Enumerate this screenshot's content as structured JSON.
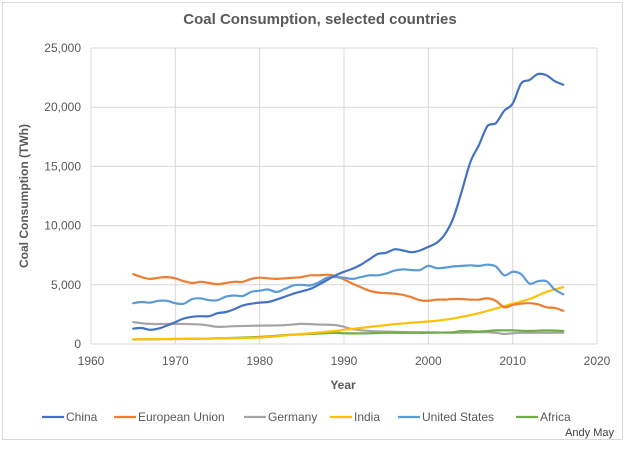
{
  "chart_data": {
    "type": "line",
    "title": "Coal Consumption, selected countries",
    "xlabel": "Year",
    "ylabel": "Coal Consumption (TWh)",
    "xlim": [
      1960,
      2020
    ],
    "ylim": [
      0,
      25000
    ],
    "xticks": [
      1960,
      1970,
      1980,
      1990,
      2000,
      2010,
      2020
    ],
    "yticks": [
      0,
      5000,
      10000,
      15000,
      20000,
      25000
    ],
    "xtick_labels": [
      "1960",
      "1970",
      "1980",
      "1990",
      "2000",
      "2010",
      "2020"
    ],
    "ytick_labels": [
      "0",
      "5,000",
      "10,000",
      "15,000",
      "20,000",
      "25,000"
    ],
    "grid": true,
    "legend_position": "bottom",
    "annotation": "Andy May",
    "series": [
      {
        "name": "China",
        "color": "#4472c4",
        "x": [
          1965,
          1966,
          1967,
          1968,
          1969,
          1970,
          1971,
          1972,
          1973,
          1974,
          1975,
          1976,
          1977,
          1978,
          1979,
          1980,
          1981,
          1982,
          1983,
          1984,
          1985,
          1986,
          1987,
          1988,
          1989,
          1990,
          1991,
          1992,
          1993,
          1994,
          1995,
          1996,
          1997,
          1998,
          1999,
          2000,
          2001,
          2002,
          2003,
          2004,
          2005,
          2006,
          2007,
          2008,
          2009,
          2010,
          2011,
          2012,
          2013,
          2014,
          2015,
          2016
        ],
        "y": [
          1300,
          1350,
          1200,
          1300,
          1550,
          1850,
          2150,
          2300,
          2350,
          2350,
          2600,
          2700,
          2950,
          3250,
          3400,
          3500,
          3550,
          3750,
          4000,
          4250,
          4450,
          4650,
          5000,
          5400,
          5800,
          6100,
          6350,
          6700,
          7150,
          7600,
          7700,
          8000,
          7900,
          7750,
          7900,
          8200,
          8550,
          9300,
          10700,
          13000,
          15400,
          16800,
          18400,
          18650,
          19700,
          20300,
          22000,
          22300,
          22800,
          22700,
          22200,
          21900
        ]
      },
      {
        "name": "European Union",
        "color": "#ed7d31",
        "x": [
          1965,
          1966,
          1967,
          1968,
          1969,
          1970,
          1971,
          1972,
          1973,
          1974,
          1975,
          1976,
          1977,
          1978,
          1979,
          1980,
          1981,
          1982,
          1983,
          1984,
          1985,
          1986,
          1987,
          1988,
          1989,
          1990,
          1991,
          1992,
          1993,
          1994,
          1995,
          1996,
          1997,
          1998,
          1999,
          2000,
          2001,
          2002,
          2003,
          2004,
          2005,
          2006,
          2007,
          2008,
          2009,
          2010,
          2011,
          2012,
          2013,
          2014,
          2015,
          2016
        ],
        "y": [
          5900,
          5650,
          5500,
          5600,
          5650,
          5550,
          5300,
          5150,
          5250,
          5150,
          5050,
          5150,
          5250,
          5250,
          5500,
          5600,
          5550,
          5500,
          5550,
          5600,
          5650,
          5800,
          5800,
          5850,
          5750,
          5450,
          5100,
          4800,
          4500,
          4350,
          4300,
          4250,
          4150,
          3950,
          3700,
          3650,
          3750,
          3750,
          3800,
          3800,
          3750,
          3750,
          3850,
          3650,
          3100,
          3300,
          3400,
          3450,
          3350,
          3100,
          3050,
          2800
        ]
      },
      {
        "name": "Germany",
        "color": "#a5a5a5",
        "x": [
          1965,
          1967,
          1970,
          1973,
          1975,
          1977,
          1980,
          1983,
          1985,
          1987,
          1989,
          1990,
          1991,
          1993,
          1995,
          1998,
          2000,
          2003,
          2006,
          2008,
          2009,
          2011,
          2013,
          2016
        ],
        "y": [
          1850,
          1700,
          1700,
          1650,
          1450,
          1500,
          1550,
          1600,
          1700,
          1650,
          1600,
          1450,
          1250,
          1100,
          1050,
          1000,
          1000,
          950,
          1000,
          950,
          850,
          950,
          950,
          950
        ]
      },
      {
        "name": "India",
        "color": "#ffc000",
        "x": [
          1965,
          1970,
          1975,
          1980,
          1985,
          1989,
          1990,
          1992,
          1995,
          1998,
          2000,
          2002,
          2004,
          2006,
          2008,
          2010,
          2012,
          2014,
          2016
        ],
        "y": [
          400,
          420,
          470,
          550,
          850,
          1100,
          1200,
          1350,
          1600,
          1800,
          1900,
          2050,
          2300,
          2600,
          3000,
          3400,
          3800,
          4400,
          4800
        ]
      },
      {
        "name": "United States",
        "color": "#5b9bd5",
        "x": [
          1965,
          1966,
          1967,
          1968,
          1969,
          1970,
          1971,
          1972,
          1973,
          1974,
          1975,
          1976,
          1977,
          1978,
          1979,
          1980,
          1981,
          1982,
          1983,
          1984,
          1985,
          1986,
          1987,
          1988,
          1989,
          1990,
          1991,
          1992,
          1993,
          1994,
          1995,
          1996,
          1997,
          1998,
          1999,
          2000,
          2001,
          2002,
          2003,
          2004,
          2005,
          2006,
          2007,
          2008,
          2009,
          2010,
          2011,
          2012,
          2013,
          2014,
          2015,
          2016
        ],
        "y": [
          3450,
          3550,
          3500,
          3650,
          3650,
          3450,
          3400,
          3800,
          3850,
          3700,
          3700,
          4000,
          4100,
          4050,
          4400,
          4500,
          4600,
          4400,
          4650,
          4950,
          5000,
          4950,
          5200,
          5600,
          5650,
          5600,
          5500,
          5650,
          5800,
          5800,
          5950,
          6200,
          6300,
          6250,
          6250,
          6600,
          6400,
          6450,
          6550,
          6600,
          6650,
          6600,
          6700,
          6550,
          5800,
          6100,
          5900,
          5100,
          5300,
          5300,
          4600,
          4200
        ]
      },
      {
        "name": "Africa",
        "color": "#70ad47",
        "x": [
          1965,
          1970,
          1975,
          1980,
          1983,
          1986,
          1989,
          1990,
          1993,
          1995,
          1998,
          2000,
          2003,
          2004,
          2006,
          2008,
          2010,
          2012,
          2014,
          2016
        ],
        "y": [
          380,
          420,
          480,
          600,
          750,
          850,
          950,
          900,
          900,
          950,
          950,
          950,
          1000,
          1100,
          1050,
          1150,
          1150,
          1100,
          1150,
          1100
        ]
      }
    ]
  }
}
